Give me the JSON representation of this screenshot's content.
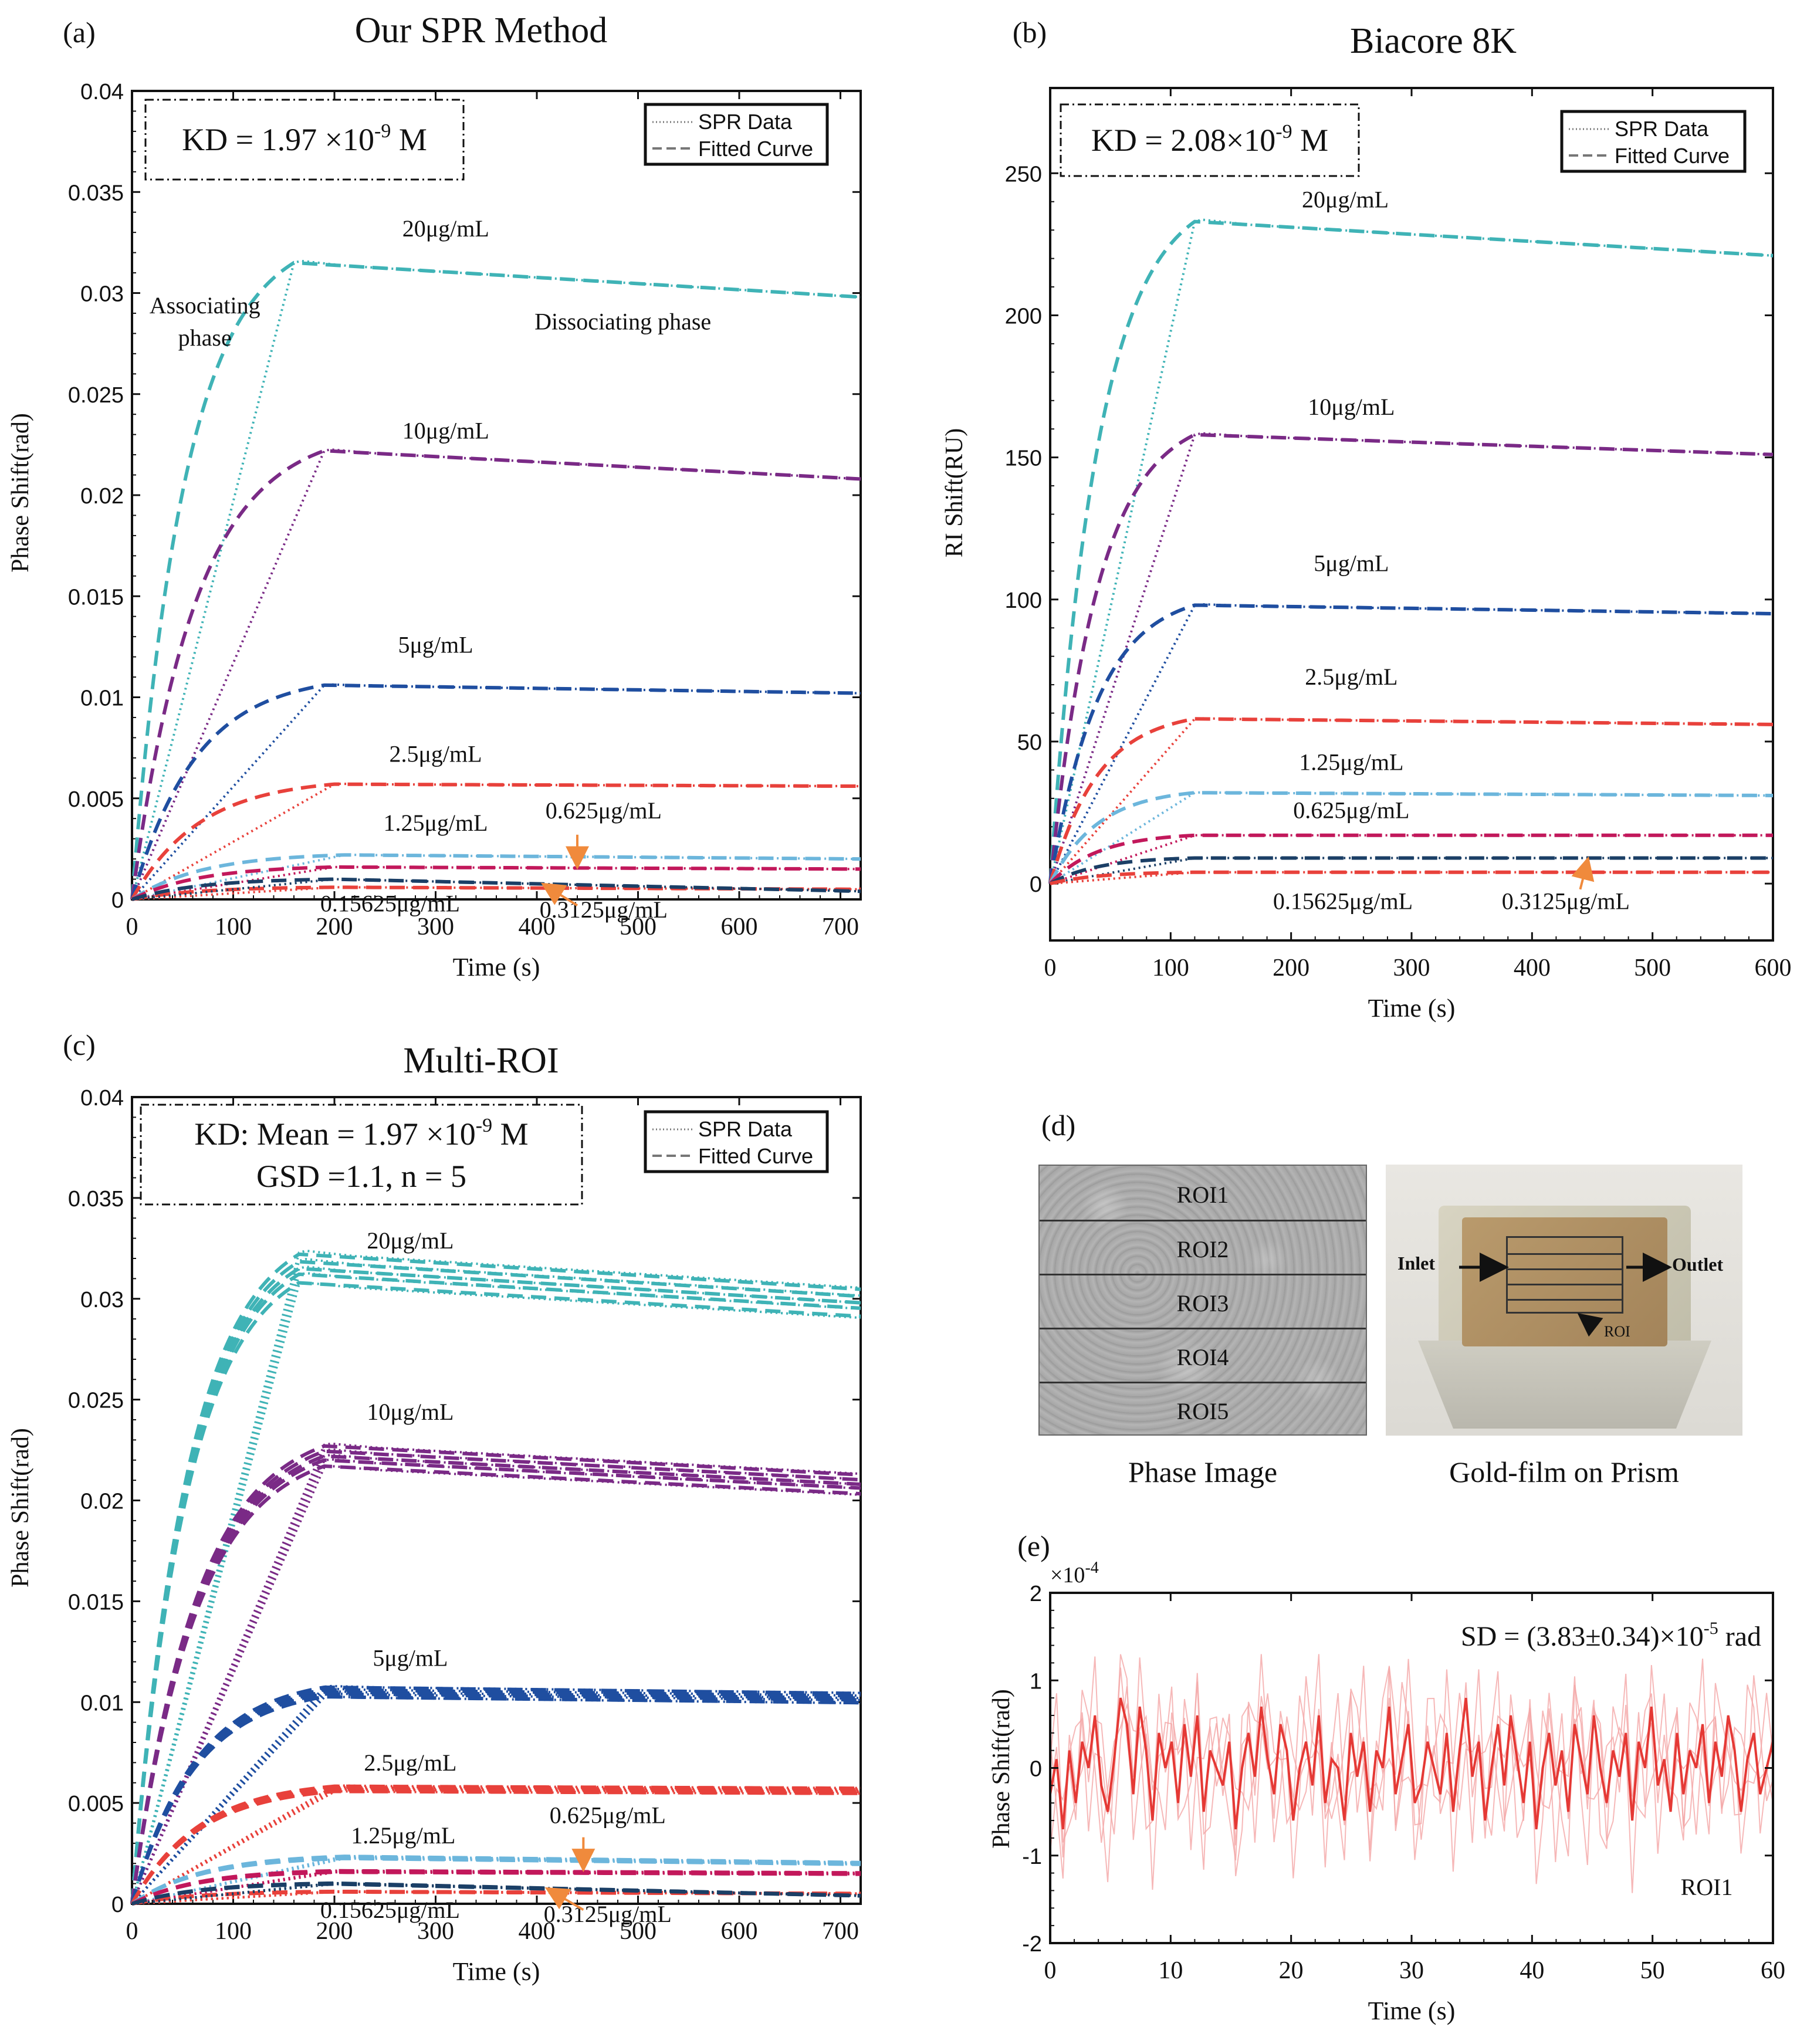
{
  "colors": {
    "c20": "#3fb3b6",
    "c10": "#7a2a86",
    "c5": "#1f4ea0",
    "c25": "#e8413b",
    "c125": "#6cb6dc",
    "c0625": "#c2185b",
    "c03125": "#e8413b",
    "c015625": "#1b3f66",
    "arrow": "#f08a3c",
    "noise": "#e53935"
  },
  "chart_data": [
    {
      "id": "a",
      "type": "line",
      "panel_label": "(a)",
      "title": "Our SPR Method",
      "xlabel": "Time (s)",
      "ylabel": "Phase Shift(rad)",
      "xlim": [
        0,
        720
      ],
      "ylim": [
        0,
        0.04
      ],
      "xticks": [
        0,
        100,
        200,
        300,
        400,
        500,
        600,
        700
      ],
      "xtick_labels": [
        "0",
        "100",
        "200",
        "300",
        "400",
        "500",
        "600",
        "700"
      ],
      "yticks": [
        0,
        0.005,
        0.01,
        0.015,
        0.02,
        0.025,
        0.03,
        0.035,
        0.04
      ],
      "ytick_labels": [
        "0",
        "0.005",
        "0.01",
        "0.015",
        "0.02",
        "0.025",
        "0.03",
        "0.035",
        "0.04"
      ],
      "kd_lines": [
        "KD  = 1.97 ×10",
        "-9",
        " M"
      ],
      "legend": [
        "SPR Data",
        "Fitted Curve"
      ],
      "series": [
        {
          "name": "20μg/mL",
          "color": "c20",
          "tAssoc": 160,
          "peak": 0.0315,
          "end": 0.0298,
          "lx": 310,
          "ly": 0.0328
        },
        {
          "name": "10μg/mL",
          "color": "c10",
          "tAssoc": 190,
          "peak": 0.0222,
          "end": 0.0208,
          "lx": 310,
          "ly": 0.0228
        },
        {
          "name": "5μg/mL",
          "color": "c5",
          "tAssoc": 190,
          "peak": 0.0106,
          "end": 0.0102,
          "lx": 300,
          "ly": 0.0122
        },
        {
          "name": "2.5μg/mL",
          "color": "c25",
          "tAssoc": 200,
          "peak": 0.0057,
          "end": 0.0056,
          "lx": 300,
          "ly": 0.0068
        },
        {
          "name": "1.25μg/mL",
          "color": "c125",
          "tAssoc": 210,
          "peak": 0.0022,
          "end": 0.002,
          "lx": 300,
          "ly": 0.0034
        },
        {
          "name": "0.625μg/mL",
          "color": "c0625",
          "tAssoc": 200,
          "peak": 0.0016,
          "end": 0.0015,
          "lx": 466,
          "ly": 0.004
        },
        {
          "name": "0.3125μg/mL",
          "color": "c03125",
          "tAssoc": 200,
          "peak": 0.0006,
          "end": 0.0005,
          "lx": 466,
          "ly": -0.0009
        },
        {
          "name": "0.15625μg/mL",
          "color": "c015625",
          "tAssoc": 200,
          "peak": 0.001,
          "end": 0.0004,
          "lx": 255,
          "ly": -0.0006
        }
      ],
      "annotations": [
        {
          "text": "Associating",
          "x": 72,
          "y": 0.029
        },
        {
          "text": "phase",
          "x": 72,
          "y": 0.0274
        },
        {
          "text": "Dissociating phase",
          "x": 485,
          "y": 0.0282
        }
      ],
      "arrows": [
        {
          "x1": 440,
          "y1": 0.0032,
          "x2": 440,
          "y2": 0.0017
        },
        {
          "x1": 440,
          "y1": -0.0003,
          "x2": 408,
          "y2": 0.0007
        }
      ]
    },
    {
      "id": "b",
      "type": "line",
      "panel_label": "(b)",
      "title": "Biacore 8K",
      "xlabel": "Time (s)",
      "ylabel": "RI Shift(RU)",
      "xlim": [
        0,
        600
      ],
      "ylim": [
        -20,
        280
      ],
      "xticks": [
        0,
        100,
        200,
        300,
        400,
        500,
        600
      ],
      "xtick_labels": [
        "0",
        "100",
        "200",
        "300",
        "400",
        "500",
        "600"
      ],
      "yticks": [
        0,
        50,
        100,
        150,
        200,
        250
      ],
      "ytick_labels": [
        "0",
        "50",
        "100",
        "150",
        "200",
        "250"
      ],
      "kd_lines": [
        "KD = 2.08×10",
        "-9",
        " M"
      ],
      "legend": [
        "SPR Data",
        "Fitted Curve"
      ],
      "series": [
        {
          "name": "20μg/mL",
          "color": "c20",
          "tAssoc": 120,
          "peak": 233,
          "end": 221,
          "lx": 245,
          "ly": 238
        },
        {
          "name": "10μg/mL",
          "color": "c10",
          "tAssoc": 120,
          "peak": 158,
          "end": 151,
          "lx": 250,
          "ly": 165
        },
        {
          "name": "5μg/mL",
          "color": "c5",
          "tAssoc": 120,
          "peak": 98,
          "end": 95,
          "lx": 250,
          "ly": 110
        },
        {
          "name": "2.5μg/mL",
          "color": "c25",
          "tAssoc": 120,
          "peak": 58,
          "end": 56,
          "lx": 250,
          "ly": 70
        },
        {
          "name": "1.25μg/mL",
          "color": "c125",
          "tAssoc": 120,
          "peak": 32,
          "end": 31,
          "lx": 250,
          "ly": 40
        },
        {
          "name": "0.625μg/mL",
          "color": "c0625",
          "tAssoc": 120,
          "peak": 17,
          "end": 17,
          "lx": 250,
          "ly": 23
        },
        {
          "name": "0.3125μg/mL",
          "color": "c015625",
          "tAssoc": 120,
          "peak": 9,
          "end": 9,
          "lx": 428,
          "ly": -9
        },
        {
          "name": "0.15625μg/mL",
          "color": "c03125",
          "tAssoc": 120,
          "peak": 4,
          "end": 4,
          "lx": 243,
          "ly": -9
        }
      ],
      "annotations": [],
      "arrows": [
        {
          "x1": 440,
          "y1": -2,
          "x2": 446,
          "y2": 8
        }
      ]
    },
    {
      "id": "c",
      "type": "line",
      "panel_label": "(c)",
      "title": "Multi-ROI",
      "xlabel": "Time (s)",
      "ylabel": "Phase Shift(rad)",
      "xlim": [
        0,
        720
      ],
      "ylim": [
        0,
        0.04
      ],
      "xticks": [
        0,
        100,
        200,
        300,
        400,
        500,
        600,
        700
      ],
      "xtick_labels": [
        "0",
        "100",
        "200",
        "300",
        "400",
        "500",
        "600",
        "700"
      ],
      "yticks": [
        0,
        0.005,
        0.01,
        0.015,
        0.02,
        0.025,
        0.03,
        0.035,
        0.04
      ],
      "ytick_labels": [
        "0",
        "0.005",
        "0.01",
        "0.015",
        "0.02",
        "0.025",
        "0.03",
        "0.035",
        "0.04"
      ],
      "kd_lines": [
        "KD: Mean = 1.97 ×10",
        "-9",
        " M"
      ],
      "kd_line2": "GSD =1.1, n = 5",
      "legend": [
        "SPR Data",
        "Fitted Curve"
      ],
      "multi": true,
      "series": [
        {
          "name": "20μg/mL",
          "color": "c20",
          "tAssoc": 165,
          "peak": 0.0315,
          "end": 0.0298,
          "lx": 275,
          "ly": 0.0325
        },
        {
          "name": "10μg/mL",
          "color": "c10",
          "tAssoc": 190,
          "peak": 0.0222,
          "end": 0.0208,
          "lx": 275,
          "ly": 0.024
        },
        {
          "name": "5μg/mL",
          "color": "c5",
          "tAssoc": 190,
          "peak": 0.0105,
          "end": 0.0102,
          "lx": 275,
          "ly": 0.0118
        },
        {
          "name": "2.5μg/mL",
          "color": "c25",
          "tAssoc": 200,
          "peak": 0.0057,
          "end": 0.0056,
          "lx": 275,
          "ly": 0.0066
        },
        {
          "name": "1.25μg/mL",
          "color": "c125",
          "tAssoc": 210,
          "peak": 0.0023,
          "end": 0.002,
          "lx": 268,
          "ly": 0.003
        },
        {
          "name": "0.625μg/mL",
          "color": "c0625",
          "tAssoc": 200,
          "peak": 0.0016,
          "end": 0.0015,
          "lx": 470,
          "ly": 0.004
        },
        {
          "name": "0.3125μg/mL",
          "color": "c03125",
          "tAssoc": 200,
          "peak": 0.0006,
          "end": 0.0005,
          "lx": 470,
          "ly": -0.0009
        },
        {
          "name": "0.15625μg/mL",
          "color": "c015625",
          "tAssoc": 200,
          "peak": 0.001,
          "end": 0.0004,
          "lx": 255,
          "ly": -0.0007
        }
      ],
      "annotations": [],
      "arrows": [
        {
          "x1": 446,
          "y1": 0.0033,
          "x2": 446,
          "y2": 0.0018
        },
        {
          "x1": 446,
          "y1": -0.0003,
          "x2": 412,
          "y2": 0.0007
        }
      ]
    },
    {
      "id": "e",
      "type": "line",
      "panel_label": "(e)",
      "title": "",
      "xlabel": "Time (s)",
      "ylabel": "Phase Shift(rad)",
      "xlim": [
        0,
        60
      ],
      "ylim": [
        -2,
        2
      ],
      "xticks": [
        0,
        10,
        20,
        30,
        40,
        50,
        60
      ],
      "xtick_labels": [
        "0",
        "10",
        "20",
        "30",
        "40",
        "50",
        "60"
      ],
      "yticks": [
        -2,
        -1,
        0,
        1,
        2
      ],
      "ytick_labels": [
        "-2",
        "-1",
        "0",
        "1",
        "2"
      ],
      "exponent": "×10",
      "exponent_power": "-4",
      "sd_parts": [
        "SD = (3.83±0.34)×10",
        "-5",
        " rad"
      ],
      "roi_label": "ROI1",
      "noise_main": [
        -0.3,
        0.1,
        -0.7,
        0.2,
        -0.4,
        0.3,
        0.0,
        0.6,
        -0.2,
        -0.5,
        0.1,
        0.8,
        0.5,
        -0.3,
        0.7,
        0.2,
        -0.6,
        0.4,
        0.0,
        0.3,
        -0.4,
        0.5,
        -0.1,
        0.6,
        -0.5,
        0.2,
        0.0,
        -0.2,
        0.3,
        -0.7,
        0.0,
        0.4,
        -0.1,
        0.7,
        0.1,
        -0.3,
        0.5,
        0.2,
        -0.6,
        0.0,
        0.3,
        -0.2,
        0.6,
        -0.4,
        0.1,
        0.0,
        -0.6,
        0.4,
        -0.1,
        0.3,
        -0.5,
        0.2,
        0.0,
        0.7,
        -0.3,
        0.1,
        0.5,
        -0.4,
        -0.2,
        0.3,
        0.0,
        -0.3,
        0.4,
        -0.5,
        0.2,
        0.8,
        -0.1,
        0.3,
        -0.6,
        0.0,
        0.5,
        -0.2,
        0.6,
        0.1,
        -0.4,
        0.3,
        -0.7,
        0.0,
        0.4,
        -0.2,
        0.2,
        -0.5,
        0.5,
        0.1,
        -0.3,
        0.6,
        0.0,
        -0.4,
        0.2,
        -0.1,
        0.4,
        -0.6,
        0.3,
        0.0,
        0.7,
        -0.2,
        0.1,
        -0.5,
        0.4,
        -0.3,
        0.2,
        0.0,
        0.5,
        -0.4,
        0.3,
        -0.1,
        0.6,
        0.2,
        -0.5,
        0.1,
        0.4,
        -0.3,
        0.0,
        0.3
      ]
    }
  ],
  "panel_d": {
    "label": "(d)",
    "rois": [
      "ROI1",
      "ROI2",
      "ROI3",
      "ROI4",
      "ROI5"
    ],
    "phase_caption": "Phase Image",
    "gold_caption": "Gold-film on Prism",
    "inlet": "Inlet",
    "outlet": "Outlet",
    "roi": "ROI"
  }
}
